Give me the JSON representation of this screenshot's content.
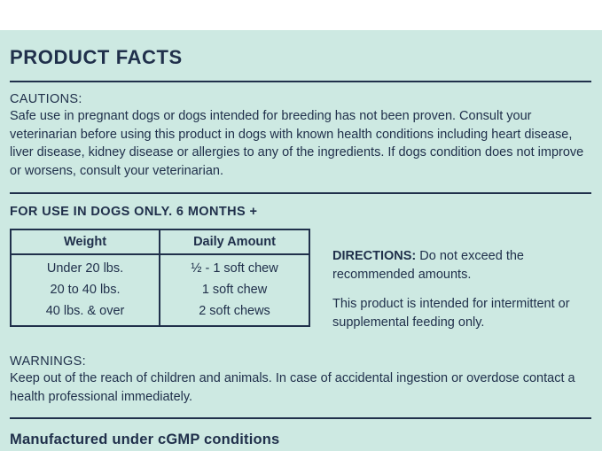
{
  "label": {
    "title": "PRODUCT FACTS",
    "cautions": {
      "heading": "CAUTIONS:",
      "body": "Safe use in pregnant dogs or dogs intended for breeding has not been proven. Consult your veterinarian before using this product in dogs with known health conditions including heart disease, liver disease, kidney disease or allergies to any of the ingredients. If dogs condition does not improve or worsens, consult your veterinarian."
    },
    "usage": "FOR USE IN DOGS ONLY. 6 MONTHS +",
    "dosage_table": {
      "headers": [
        "Weight",
        "Daily Amount"
      ],
      "rows": [
        [
          "Under 20 lbs.",
          "½ - 1 soft chew"
        ],
        [
          "20 to 40 lbs.",
          "1 soft chew"
        ],
        [
          "40 lbs. & over",
          "2 soft chews"
        ]
      ]
    },
    "directions": {
      "heading": "DIRECTIONS:",
      "body": "Do not exceed the recommended amounts.",
      "note": "This product is intended for intermittent or supplemental feeding only."
    },
    "warnings": {
      "heading": "WARNINGS:",
      "body": "Keep out of the reach of children and animals. In case of accidental ingestion or overdose contact a health professional immediately."
    },
    "footer": "Manufactured under cGMP conditions"
  },
  "colors": {
    "background": "#cde9e2",
    "text": "#20304b"
  }
}
